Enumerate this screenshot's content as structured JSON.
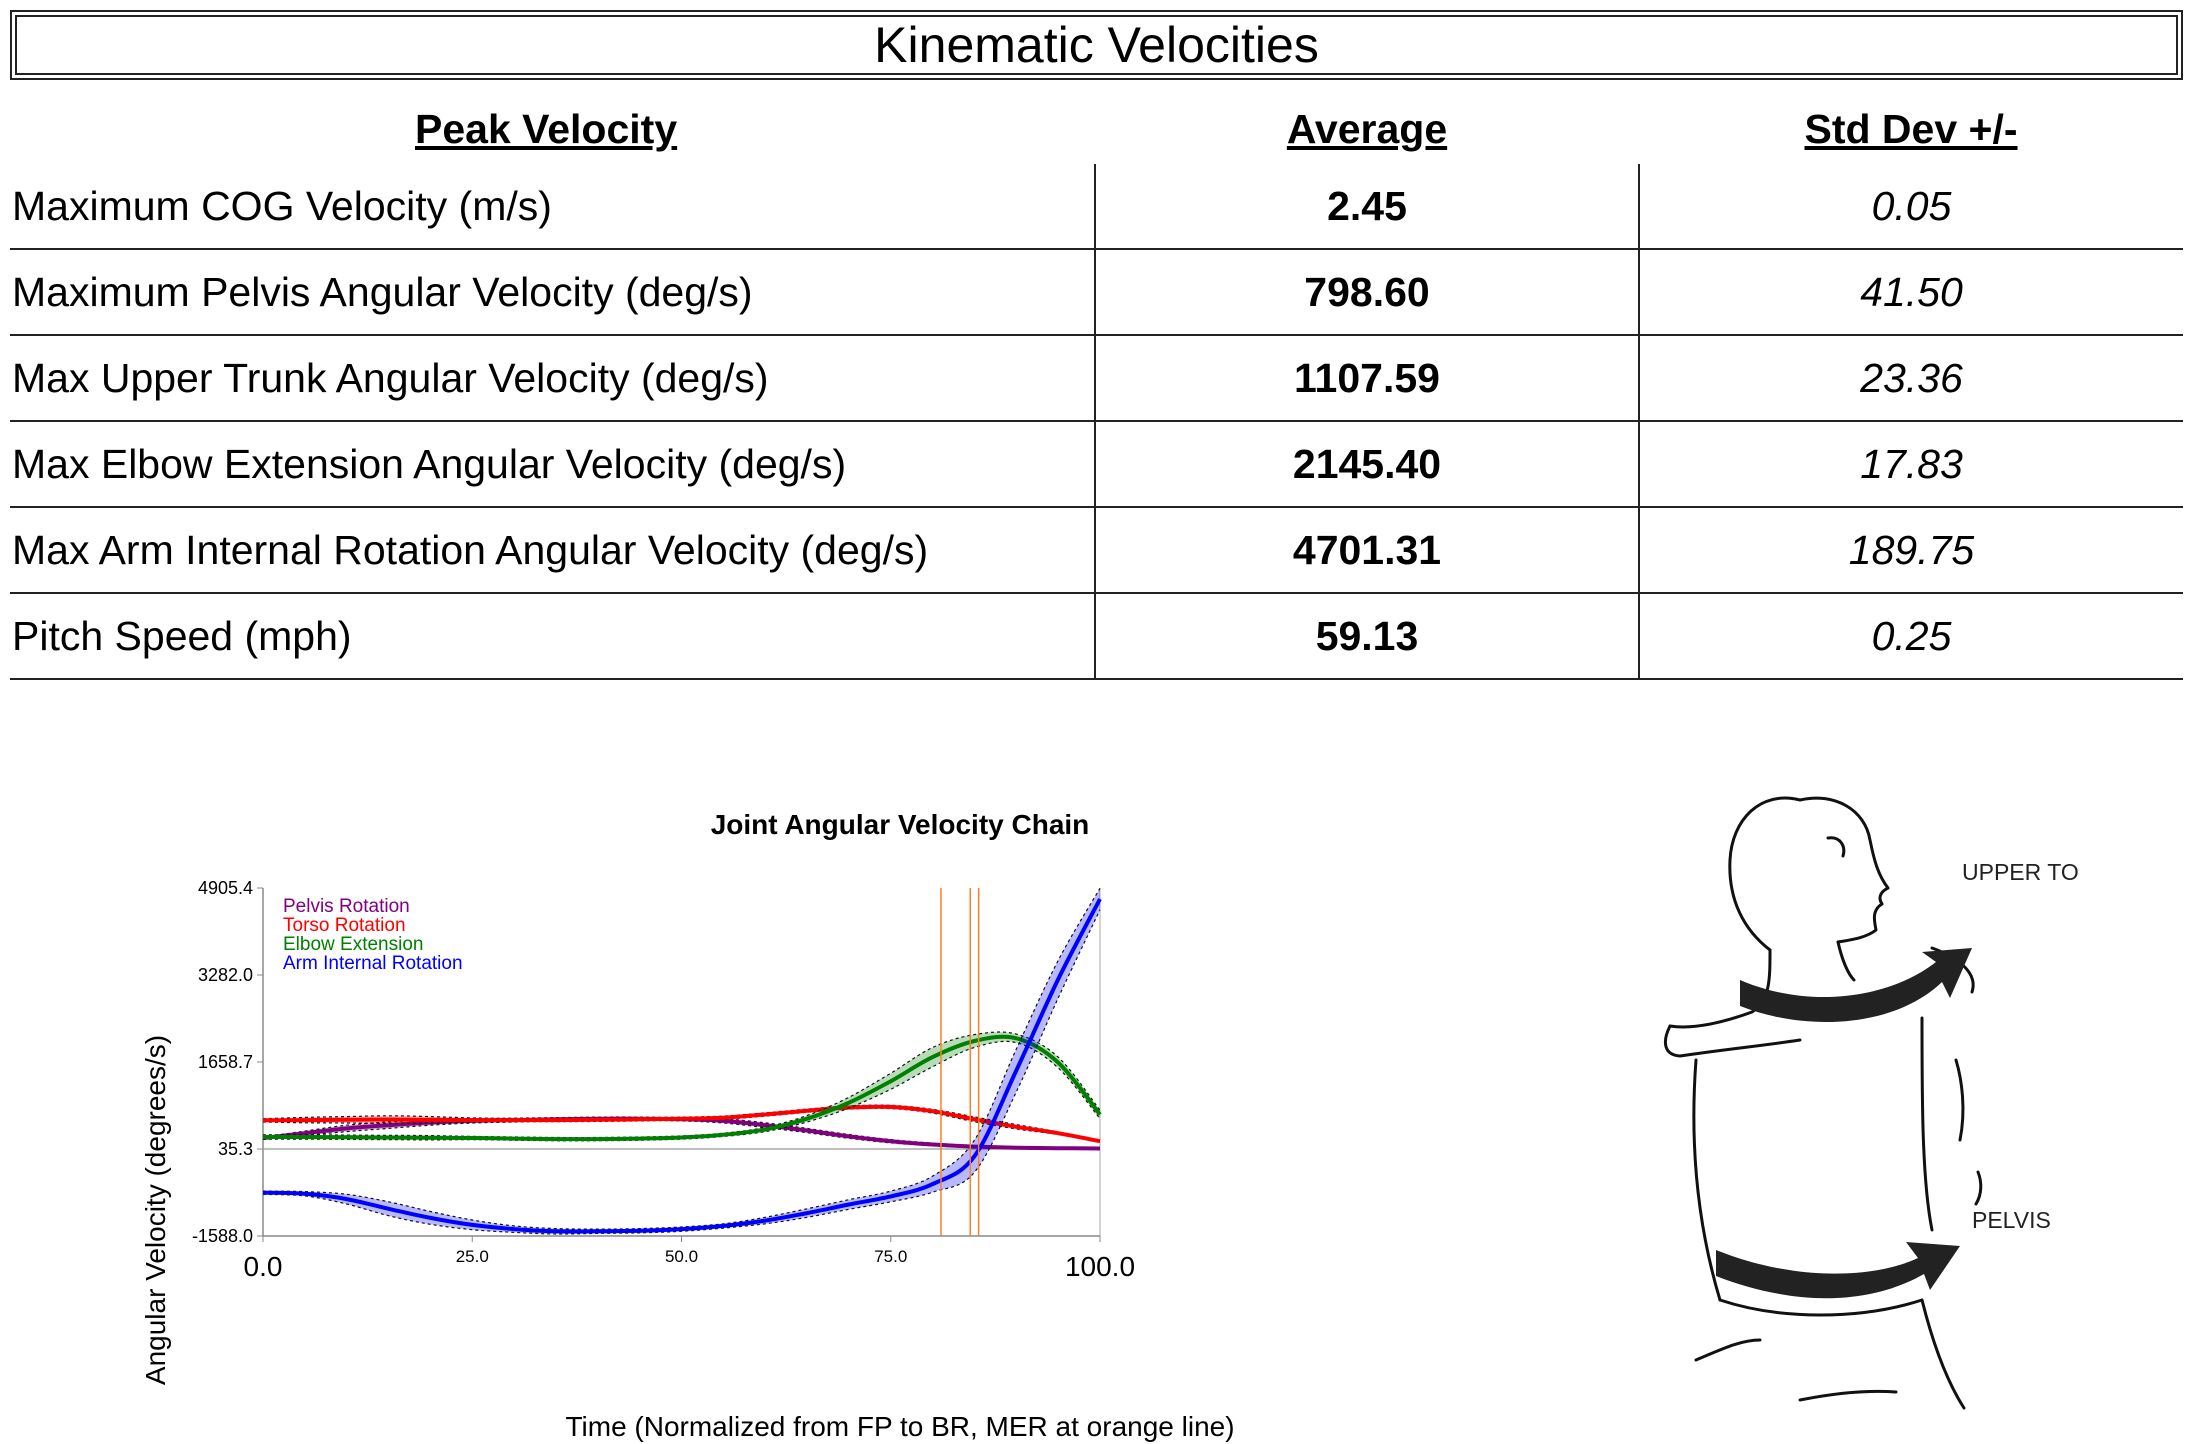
{
  "header": {
    "title": "Kinematic Velocities"
  },
  "table": {
    "columns": [
      "Peak Velocity",
      "Average",
      "Std Dev +/-"
    ],
    "rows": [
      {
        "label": "Maximum COG Velocity (m/s)",
        "average": "2.45",
        "std": "0.05"
      },
      {
        "label": "Maximum Pelvis Angular Velocity (deg/s)",
        "average": "798.60",
        "std": "41.50"
      },
      {
        "label": "Max Upper Trunk Angular Velocity (deg/s)",
        "average": "1107.59",
        "std": "23.36"
      },
      {
        "label": "Max Elbow Extension Angular Velocity (deg/s)",
        "average": "2145.40",
        "std": "17.83"
      },
      {
        "label": "Max Arm Internal Rotation Angular Velocity (deg/s)",
        "average": "4701.31",
        "std": "189.75"
      },
      {
        "label": "Pitch Speed (mph)",
        "average": "59.13",
        "std": "0.25"
      }
    ]
  },
  "figure": {
    "labels": [
      "UPPER TORSO",
      "PELVIS"
    ]
  },
  "chart_data": {
    "type": "line",
    "title": "Joint Angular Velocity Chain",
    "xlabel": "Time (Normalized from FP to BR, MER at orange line)",
    "ylabel": "Angular Velocity (degrees/s)",
    "xlim": [
      0,
      100
    ],
    "ylim": [
      -1588.0,
      4905.4
    ],
    "x_ticks": [
      "0.0",
      "25.0",
      "50.0",
      "75.0",
      "100.0"
    ],
    "y_ticks": [
      "-1588.0",
      "35.3",
      "1658.7",
      "3282.0",
      "4905.4"
    ],
    "reference_line_y": 35.3,
    "orange_lines_x": [
      81,
      84.5,
      85.5
    ],
    "legend_position": "top-left",
    "x": [
      0,
      5,
      10,
      15,
      20,
      25,
      30,
      35,
      40,
      45,
      50,
      55,
      60,
      65,
      70,
      75,
      80,
      85,
      90,
      95,
      100
    ],
    "series": [
      {
        "name": "Pelvis Rotation",
        "color": "#800080",
        "values": [
          238,
          330,
          420,
          480,
          530,
          560,
          575,
          590,
          600,
          600,
          590,
          560,
          480,
          380,
          270,
          180,
          120,
          80,
          60,
          50,
          45
        ],
        "band": [
          20,
          40,
          60,
          60,
          50,
          40,
          35,
          30,
          30,
          30,
          30,
          40,
          45,
          40,
          35,
          30,
          25,
          20,
          15,
          10,
          10
        ]
      },
      {
        "name": "Torso Rotation",
        "color": "#ff0000",
        "values": [
          570,
          575,
          580,
          585,
          580,
          575,
          575,
          575,
          580,
          590,
          600,
          620,
          680,
          750,
          810,
          820,
          740,
          590,
          450,
          330,
          180
        ],
        "band": [
          30,
          50,
          60,
          70,
          60,
          40,
          30,
          30,
          30,
          30,
          30,
          30,
          30,
          30,
          30,
          30,
          35,
          45,
          40,
          25,
          15
        ]
      },
      {
        "name": "Elbow Extension",
        "color": "#008000",
        "values": [
          260,
          260,
          255,
          250,
          245,
          240,
          230,
          220,
          220,
          230,
          250,
          300,
          400,
          600,
          900,
          1300,
          1750,
          2050,
          2100,
          1650,
          680
        ],
        "band": [
          40,
          40,
          40,
          40,
          40,
          30,
          30,
          30,
          30,
          30,
          30,
          30,
          40,
          60,
          100,
          150,
          180,
          120,
          80,
          100,
          80
        ]
      },
      {
        "name": "Arm Internal Rotation",
        "color": "#0000ff",
        "values": [
          -780,
          -800,
          -900,
          -1080,
          -1250,
          -1380,
          -1460,
          -1500,
          -1500,
          -1490,
          -1460,
          -1400,
          -1300,
          -1160,
          -1000,
          -850,
          -620,
          -100,
          1500,
          3200,
          4700
        ],
        "band": [
          30,
          40,
          90,
          130,
          120,
          90,
          60,
          50,
          40,
          40,
          40,
          40,
          60,
          80,
          90,
          100,
          150,
          300,
          400,
          350,
          200
        ]
      }
    ]
  }
}
